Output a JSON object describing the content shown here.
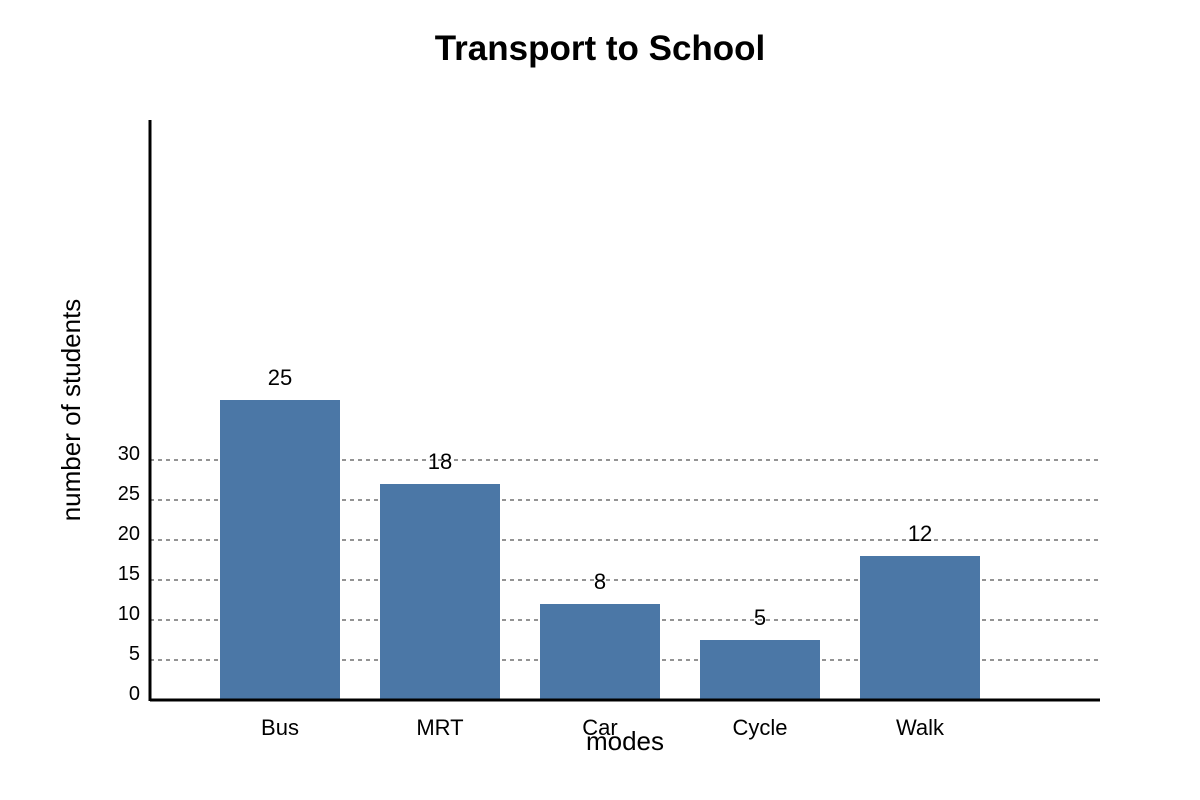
{
  "chart_data": {
    "type": "bar",
    "title": "Transport to School",
    "xlabel": "modes",
    "ylabel": "number of students",
    "categories": [
      "Bus",
      "MRT",
      "Car",
      "Cycle",
      "Walk"
    ],
    "values": [
      25,
      18,
      8,
      5,
      12
    ],
    "y_ticks": [
      "0",
      "5",
      "10",
      "15",
      "20",
      "25",
      "30"
    ],
    "bar_color": "#4b77a6",
    "grid": true,
    "legend": "none"
  }
}
